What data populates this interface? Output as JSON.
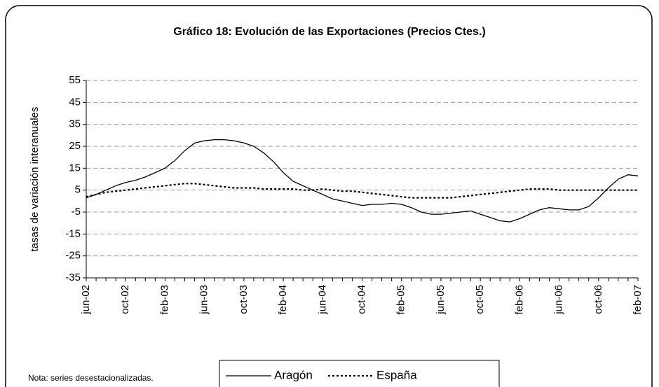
{
  "chart_data": {
    "type": "line",
    "title": "Gráfico 18: Evolución de las Exportaciones (Precios Ctes.)",
    "y_label": "tasas de variación interanuales",
    "note": "Nota: series desestacionalizadas.",
    "categories": [
      "jun-02",
      null,
      null,
      null,
      "oct-02",
      null,
      null,
      null,
      "feb-03",
      null,
      null,
      null,
      "jun-03",
      null,
      null,
      null,
      "oct-03",
      null,
      null,
      null,
      "feb-04",
      null,
      null,
      null,
      "jun-04",
      null,
      null,
      null,
      "oct-04",
      null,
      null,
      null,
      "feb-05",
      null,
      null,
      null,
      "jun-05",
      null,
      null,
      null,
      "oct-05",
      null,
      null,
      null,
      "feb-06",
      null,
      null,
      null,
      "jun-06",
      null,
      null,
      null,
      "oct-06",
      null,
      null,
      null,
      "feb-07"
    ],
    "series": [
      {
        "name": "Aragón",
        "color": "#000000",
        "style": "solid",
        "values": [
          1.5,
          3,
          5,
          7,
          8.5,
          9.5,
          11,
          13,
          15,
          18.5,
          23,
          26.5,
          27.5,
          28,
          28,
          27.5,
          26.5,
          25,
          22,
          18,
          13,
          9,
          7,
          5,
          3,
          1,
          0,
          -1,
          -2,
          -1.5,
          -1.5,
          -1,
          -1.5,
          -3,
          -5,
          -6,
          -6,
          -5.5,
          -5,
          -4.5,
          -6,
          -7.5,
          -9,
          -9.5,
          -8,
          -6,
          -4,
          -3,
          -3.5,
          -4,
          -4,
          -2.5,
          1.5,
          6,
          10,
          12,
          11.5
        ]
      },
      {
        "name": "España",
        "color": "#000000",
        "style": "dotted",
        "values": [
          2,
          3,
          4,
          4.5,
          5,
          5.5,
          6,
          6.5,
          7,
          7.5,
          8,
          8,
          7.5,
          7,
          6.5,
          6,
          6,
          6,
          5.5,
          5.5,
          5.5,
          5.5,
          5,
          5,
          5.5,
          5,
          4.5,
          4.5,
          4,
          3.5,
          3,
          2.5,
          2,
          1.5,
          1.5,
          1.5,
          1.5,
          1.5,
          2,
          2.5,
          3,
          3.5,
          4,
          4.5,
          5,
          5.5,
          5.5,
          5.5,
          5,
          5,
          5,
          5,
          5,
          5,
          5,
          5,
          5
        ]
      }
    ],
    "ylim": [
      -35,
      55
    ],
    "yticks": [
      -35,
      -25,
      -15,
      -5,
      5,
      15,
      25,
      35,
      45,
      55
    ],
    "grid": true
  }
}
